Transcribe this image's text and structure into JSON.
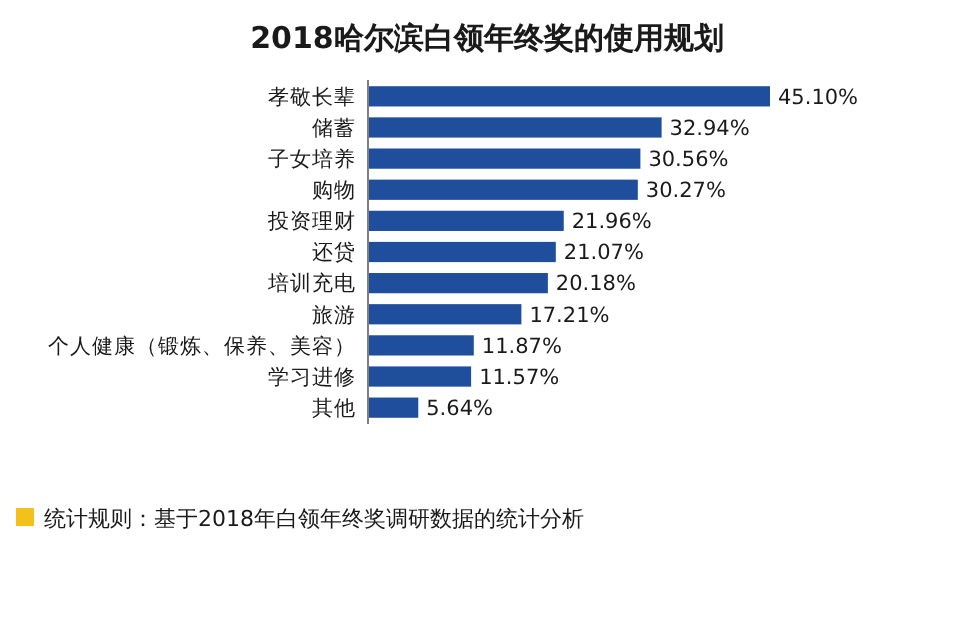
{
  "chart_data": {
    "type": "bar",
    "orientation": "horizontal",
    "title": "2018哈尔滨白领年终奖的使用规划",
    "categories": [
      "孝敬长辈",
      "储蓄",
      "子女培养",
      "购物",
      "投资理财",
      "还贷",
      "培训充电",
      "旅游",
      "个人健康（锻炼、保养、美容）",
      "学习进修",
      "其他"
    ],
    "values": [
      45.1,
      32.94,
      30.56,
      30.27,
      21.96,
      21.07,
      20.18,
      17.21,
      11.87,
      11.57,
      5.64
    ],
    "value_labels": [
      "45.10%",
      "32.94%",
      "30.56%",
      "30.27%",
      "21.96%",
      "21.07%",
      "20.18%",
      "17.21%",
      "11.87%",
      "11.57%",
      "5.64%"
    ],
    "color": "#1f4e9c",
    "annotations": [
      "统计规则：基于2018年白领年终奖调研数据的统计分析"
    ]
  }
}
